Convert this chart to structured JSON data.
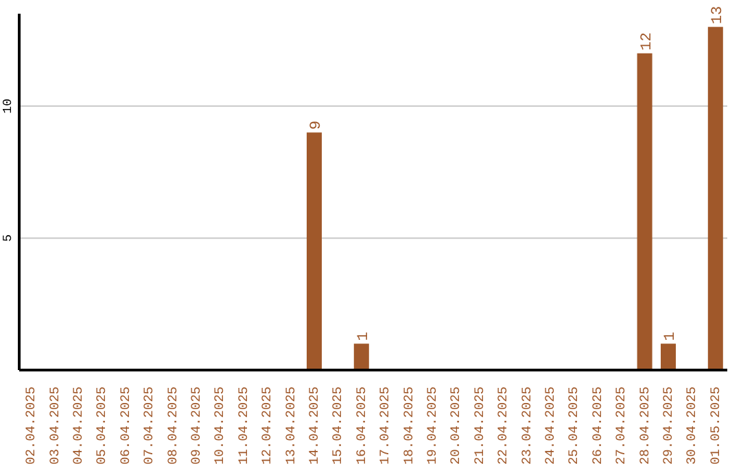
{
  "chart_data": {
    "type": "bar",
    "categories": [
      "02.04.2025",
      "03.04.2025",
      "04.04.2025",
      "05.04.2025",
      "06.04.2025",
      "07.04.2025",
      "08.04.2025",
      "09.04.2025",
      "10.04.2025",
      "11.04.2025",
      "12.04.2025",
      "13.04.2025",
      "14.04.2025",
      "15.04.2025",
      "16.04.2025",
      "17.04.2025",
      "18.04.2025",
      "19.04.2025",
      "20.04.2025",
      "21.04.2025",
      "22.04.2025",
      "23.04.2025",
      "24.04.2025",
      "25.04.2025",
      "26.04.2025",
      "27.04.2025",
      "28.04.2025",
      "29.04.2025",
      "30.04.2025",
      "01.05.2025"
    ],
    "values": [
      0,
      0,
      0,
      0,
      0,
      0,
      0,
      0,
      0,
      0,
      0,
      0,
      9,
      0,
      1,
      0,
      0,
      0,
      0,
      0,
      0,
      0,
      0,
      0,
      0,
      0,
      12,
      1,
      0,
      13
    ],
    "value_labels": [
      null,
      null,
      null,
      null,
      null,
      null,
      null,
      null,
      null,
      null,
      null,
      null,
      "9",
      null,
      "1",
      null,
      null,
      null,
      null,
      null,
      null,
      null,
      null,
      null,
      null,
      null,
      "12",
      "1",
      null,
      "13"
    ],
    "color": "#a0582a",
    "ylim": [
      0,
      13.5
    ],
    "yticks": [
      5,
      10
    ],
    "grid": "y",
    "legend": false
  }
}
